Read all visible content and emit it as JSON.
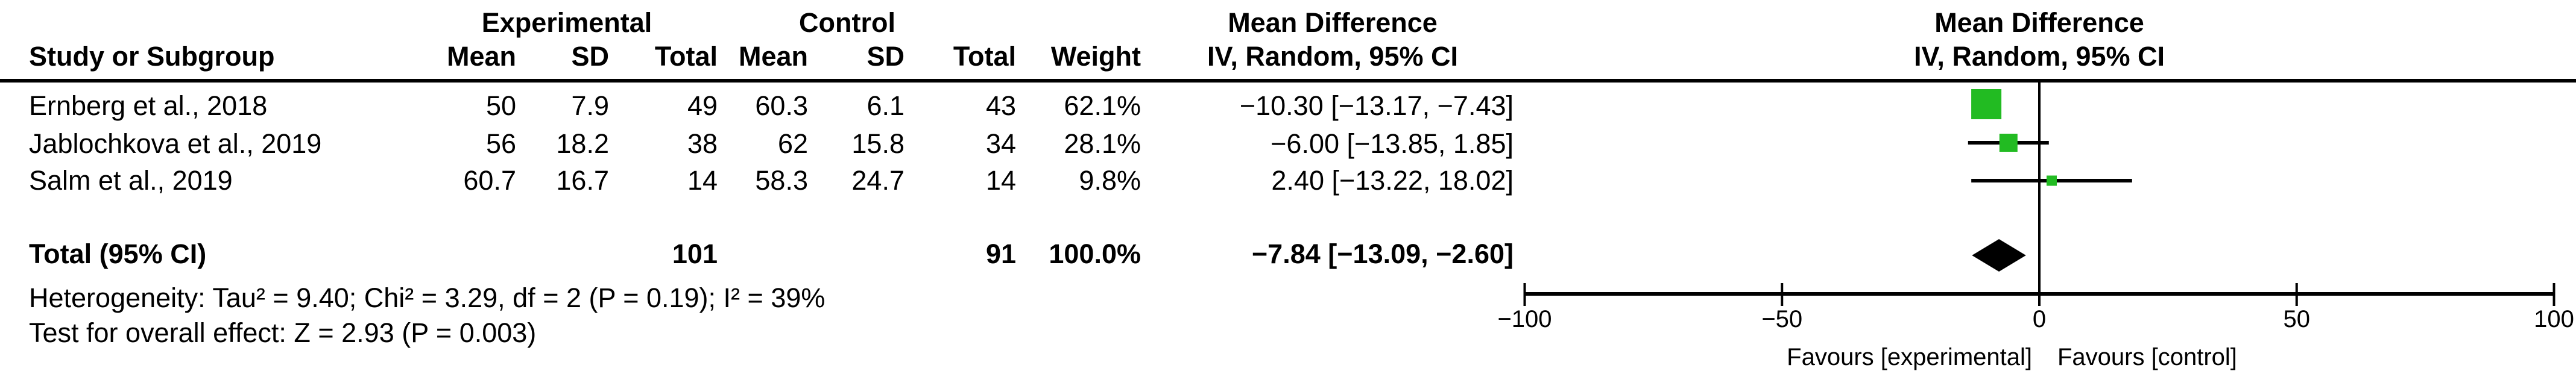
{
  "figure": {
    "group_headers": {
      "experimental": "Experimental",
      "control": "Control",
      "mean_difference": "Mean Difference"
    },
    "columns": {
      "study": "Study or Subgroup",
      "mean": "Mean",
      "sd": "SD",
      "total": "Total",
      "weight": "Weight",
      "ci": "IV, Random, 95% CI"
    },
    "plot_headers": {
      "line1": "Mean Difference",
      "line2": "IV, Random, 95% CI"
    },
    "rows": [
      {
        "name": "Ernberg et al., 2018",
        "mean_e": "50",
        "sd_e": "7.9",
        "n_e": "49",
        "mean_c": "60.3",
        "sd_c": "6.1",
        "n_c": "43",
        "weight": "62.1%",
        "ci": "−10.30 [−13.17, −7.43]"
      },
      {
        "name": "Jablochkova et al., 2019",
        "mean_e": "56",
        "sd_e": "18.2",
        "n_e": "38",
        "mean_c": "62",
        "sd_c": "15.8",
        "n_c": "34",
        "weight": "28.1%",
        "ci": "−6.00 [−13.85, 1.85]"
      },
      {
        "name": "Salm et al., 2019",
        "mean_e": "60.7",
        "sd_e": "16.7",
        "n_e": "14",
        "mean_c": "58.3",
        "sd_c": "24.7",
        "n_c": "14",
        "weight": "9.8%",
        "ci": "2.40 [−13.22, 18.02]"
      }
    ],
    "total_row": {
      "label": "Total (95% CI)",
      "n_e": "101",
      "n_c": "91",
      "weight": "100.0%",
      "ci": "−7.84 [−13.09, −2.60]"
    },
    "footer": {
      "heterogeneity": "Heterogeneity: Tau² = 9.40; Chi² = 3.29, df = 2 (P = 0.19); I² = 39%",
      "overall_effect": "Test for overall effect: Z = 2.93 (P = 0.003)"
    }
  },
  "chart_data": {
    "type": "forest",
    "effect_measure": "Mean Difference",
    "model": "IV, Random, 95% CI",
    "studies": [
      {
        "name": "Ernberg et al., 2018",
        "md": -10.3,
        "ci_low": -13.17,
        "ci_high": -7.43,
        "weight_pct": 62.1
      },
      {
        "name": "Jablochkova et al., 2019",
        "md": -6.0,
        "ci_low": -13.85,
        "ci_high": 1.85,
        "weight_pct": 28.1
      },
      {
        "name": "Salm et al., 2019",
        "md": 2.4,
        "ci_low": -13.22,
        "ci_high": 18.02,
        "weight_pct": 9.8
      }
    ],
    "total": {
      "md": -7.84,
      "ci_low": -13.09,
      "ci_high": -2.6,
      "weight_pct": 100.0
    },
    "axis": {
      "min": -100,
      "max": 100,
      "ticks": [
        -100,
        -50,
        0,
        50,
        100
      ],
      "tick_labels": [
        "−100",
        "−50",
        "0",
        "50",
        "100"
      ]
    },
    "xlabel_left": "Favours [experimental]",
    "xlabel_right": "Favours [control]",
    "colors": {
      "square": "#22bb22",
      "diamond": "#000000",
      "line": "#000000"
    }
  }
}
